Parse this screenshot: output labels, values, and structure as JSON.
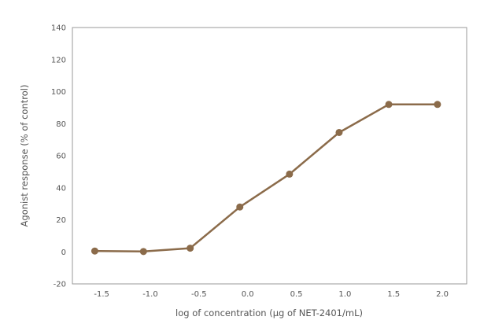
{
  "chart_data": {
    "type": "line",
    "xlabel": "log of concentration (μg of NET-2401/mL)",
    "ylabel": "Agonist response (% of control)",
    "xlim": [
      -1.65,
      2.4
    ],
    "ylim": [
      -20,
      140
    ],
    "xticks": [
      {
        "value": -1.35,
        "label": "-1.5"
      },
      {
        "value": -0.85,
        "label": "-1.0"
      },
      {
        "value": -0.35,
        "label": "-0.5"
      },
      {
        "value": 0.15,
        "label": "0.0"
      },
      {
        "value": 0.65,
        "label": "0.5"
      },
      {
        "value": 1.15,
        "label": "1.0"
      },
      {
        "value": 1.65,
        "label": "1.5"
      },
      {
        "value": 2.15,
        "label": "2.0"
      }
    ],
    "yticks": [
      -20,
      0,
      20,
      40,
      60,
      80,
      100,
      120,
      140
    ],
    "grid": false,
    "series": [
      {
        "color": "#8b6b4a",
        "x": [
          -1.42,
          -0.92,
          -0.44,
          0.07,
          0.58,
          1.09,
          1.6,
          2.1
        ],
        "y": [
          0.5,
          0.2,
          2.3,
          28,
          48.5,
          74.5,
          92,
          92
        ]
      }
    ]
  }
}
